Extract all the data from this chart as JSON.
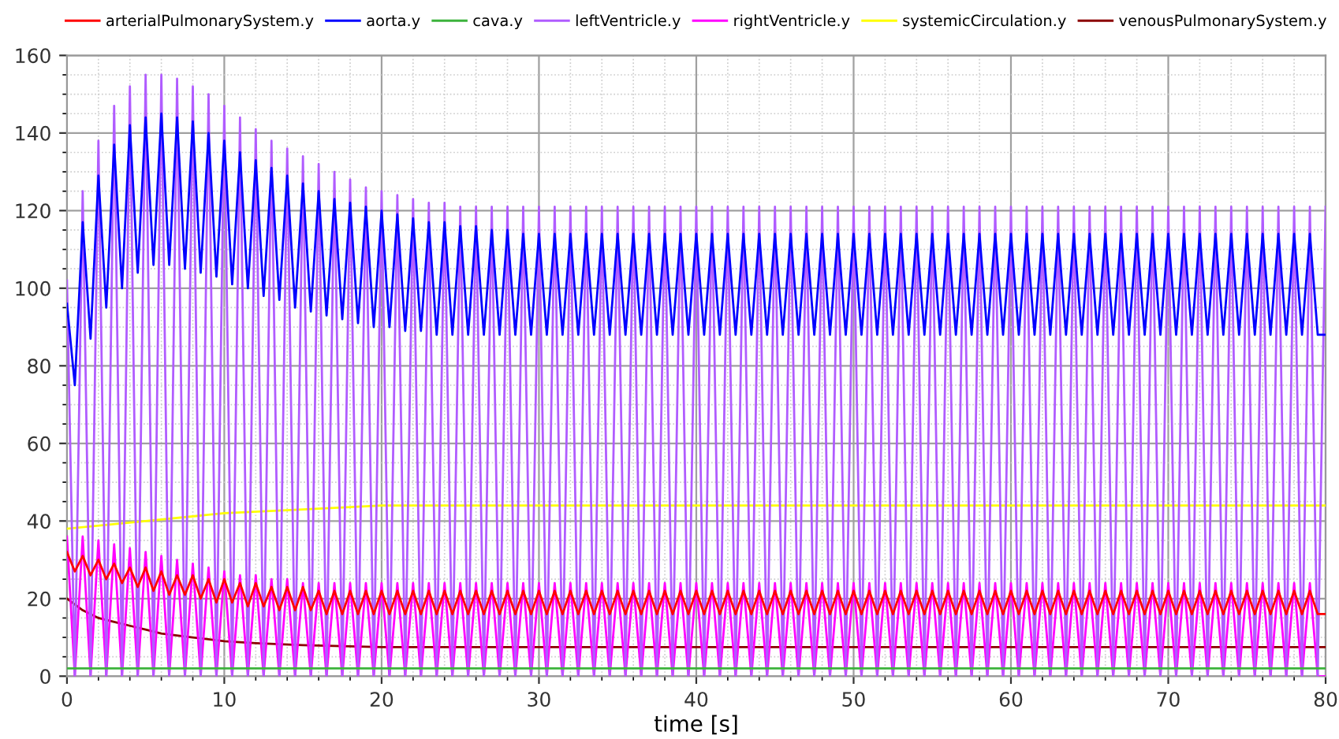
{
  "chart_data": {
    "type": "line",
    "xlabel": "time [s]",
    "x": [
      0,
      0.5,
      1,
      1.5,
      2,
      2.5,
      3,
      3.5,
      4,
      4.5,
      5,
      5.5,
      6,
      6.5,
      7,
      7.5,
      8,
      8.5,
      9,
      9.5,
      10,
      10.5,
      11,
      11.5,
      12,
      12.5,
      13,
      13.5,
      14,
      14.5,
      15,
      15.5,
      16,
      16.5,
      17,
      17.5,
      18,
      18.5,
      19,
      19.5,
      20,
      20.5,
      21,
      21.5,
      22,
      22.5,
      23,
      23.5,
      24,
      24.5,
      25,
      25.5,
      26,
      26.5,
      27,
      27.5,
      28,
      28.5,
      29,
      29.5,
      30,
      30.5,
      31,
      31.5,
      32,
      32.5,
      33,
      33.5,
      34,
      34.5,
      35,
      35.5,
      36,
      36.5,
      37,
      37.5,
      38,
      38.5,
      39,
      39.5,
      40,
      40.5,
      41,
      41.5,
      42,
      42.5,
      43,
      43.5,
      44,
      44.5,
      45,
      45.5,
      46,
      46.5,
      47,
      47.5,
      48,
      48.5,
      49,
      49.5,
      50,
      50.5,
      51,
      51.5,
      52,
      52.5,
      53,
      53.5,
      54,
      54.5,
      55,
      55.5,
      56,
      56.5,
      57,
      57.5,
      58,
      58.5,
      59,
      59.5,
      60,
      60.5,
      61,
      61.5,
      62,
      62.5,
      63,
      63.5,
      64,
      64.5,
      65,
      65.5,
      66,
      66.5,
      67,
      67.5,
      68,
      68.5,
      69,
      69.5,
      70,
      70.5,
      71,
      71.5,
      72,
      72.5,
      73,
      73.5,
      74,
      74.5,
      75,
      75.5,
      76,
      76.5,
      77,
      77.5,
      78,
      78.5,
      79,
      79.5,
      80
    ],
    "series": [
      {
        "name": "arterialPulmonarySystem.y",
        "color": "#ff0000",
        "values": [
          32,
          27,
          31,
          26,
          30,
          25,
          29,
          24,
          28,
          23,
          28,
          22,
          27,
          21,
          26,
          21,
          26,
          20,
          25,
          19,
          25,
          19,
          24,
          18,
          24,
          18,
          23,
          17,
          23,
          17,
          23,
          17,
          22,
          16,
          22,
          16,
          22,
          16,
          22,
          16,
          22,
          16,
          22,
          16,
          22,
          16,
          22,
          16,
          22,
          16,
          22,
          16,
          22,
          16,
          22,
          16,
          22,
          16,
          22,
          16,
          22,
          16,
          22,
          16,
          22,
          16,
          22,
          16,
          22,
          16,
          22,
          16,
          22,
          16,
          22,
          16,
          22,
          16,
          22,
          16,
          22,
          16,
          22,
          16,
          22,
          16,
          22,
          16,
          22,
          16,
          22,
          16,
          22,
          16,
          22,
          16,
          22,
          16,
          22,
          16,
          22,
          16,
          22,
          16,
          22,
          16,
          22,
          16,
          22,
          16,
          22,
          16,
          22,
          16,
          22,
          16,
          22,
          16,
          22,
          16,
          22,
          16,
          22,
          16,
          22,
          16,
          22,
          16,
          22,
          16,
          22,
          16,
          22,
          16,
          22,
          16,
          22,
          16,
          22,
          16,
          22,
          16,
          22,
          16,
          22,
          16,
          22,
          16,
          22,
          16,
          22,
          16,
          22,
          16,
          22,
          16,
          22,
          16,
          22,
          16,
          16
        ]
      },
      {
        "name": "aorta.y",
        "color": "#0000ff",
        "values": [
          96,
          75,
          117,
          87,
          129,
          95,
          137,
          100,
          142,
          104,
          144,
          106,
          145,
          106,
          144,
          105,
          143,
          104,
          140,
          103,
          138,
          101,
          135,
          100,
          133,
          98,
          131,
          97,
          129,
          95,
          127,
          94,
          125,
          93,
          123,
          92,
          122,
          91,
          121,
          90,
          120,
          90,
          119,
          89,
          118,
          89,
          117,
          88,
          117,
          88,
          116,
          88,
          116,
          88,
          115,
          88,
          115,
          88,
          114,
          88,
          114,
          88,
          114,
          88,
          114,
          88,
          114,
          88,
          114,
          88,
          114,
          88,
          114,
          88,
          114,
          88,
          114,
          88,
          114,
          88,
          114,
          88,
          114,
          88,
          114,
          88,
          114,
          88,
          114,
          88,
          114,
          88,
          114,
          88,
          114,
          88,
          114,
          88,
          114,
          88,
          114,
          88,
          114,
          88,
          114,
          88,
          114,
          88,
          114,
          88,
          114,
          88,
          114,
          88,
          114,
          88,
          114,
          88,
          114,
          88,
          114,
          88,
          114,
          88,
          114,
          88,
          114,
          88,
          114,
          88,
          114,
          88,
          114,
          88,
          114,
          88,
          114,
          88,
          114,
          88,
          114,
          88,
          114,
          88,
          114,
          88,
          114,
          88,
          114,
          88,
          114,
          88,
          114,
          88,
          114,
          88,
          114,
          88,
          114,
          88,
          88
        ]
      },
      {
        "name": "cava.y",
        "color": "#3cb33c",
        "x": [
          0,
          80
        ],
        "values": [
          2,
          2
        ]
      },
      {
        "name": "leftVentricle.y",
        "color": "#b05cff",
        "values": [
          102,
          0,
          125,
          0,
          138,
          0,
          147,
          0,
          152,
          0,
          155,
          0,
          155,
          0,
          154,
          0,
          152,
          0,
          150,
          0,
          147,
          0,
          144,
          0,
          141,
          0,
          138,
          0,
          136,
          0,
          134,
          0,
          132,
          0,
          130,
          0,
          128,
          0,
          126,
          0,
          125,
          0,
          124,
          0,
          123,
          0,
          122,
          0,
          122,
          0,
          121,
          0,
          121,
          0,
          121,
          0,
          121,
          0,
          121,
          0,
          121,
          0,
          121,
          0,
          121,
          0,
          121,
          0,
          121,
          0,
          121,
          0,
          121,
          0,
          121,
          0,
          121,
          0,
          121,
          0,
          121,
          0,
          121,
          0,
          121,
          0,
          121,
          0,
          121,
          0,
          121,
          0,
          121,
          0,
          121,
          0,
          121,
          0,
          121,
          0,
          121,
          0,
          121,
          0,
          121,
          0,
          121,
          0,
          121,
          0,
          121,
          0,
          121,
          0,
          121,
          0,
          121,
          0,
          121,
          0,
          121,
          0,
          121,
          0,
          121,
          0,
          121,
          0,
          121,
          0,
          121,
          0,
          121,
          0,
          121,
          0,
          121,
          0,
          121,
          0,
          121,
          0,
          121,
          0,
          121,
          0,
          121,
          0,
          121,
          0,
          121,
          0,
          121,
          0,
          121,
          0,
          121,
          0,
          121,
          0,
          121
        ]
      },
      {
        "name": "rightVentricle.y",
        "color": "#ff00ff",
        "values": [
          36,
          0,
          36,
          0,
          35,
          0,
          34,
          0,
          33,
          0,
          32,
          0,
          31,
          0,
          30,
          0,
          29,
          0,
          28,
          0,
          27,
          0,
          26,
          0,
          26,
          0,
          25,
          0,
          25,
          0,
          24,
          0,
          24,
          0,
          24,
          0,
          24,
          0,
          24,
          0,
          24,
          0,
          24,
          0,
          24,
          0,
          24,
          0,
          24,
          0,
          24,
          0,
          24,
          0,
          24,
          0,
          24,
          0,
          24,
          0,
          24,
          0,
          24,
          0,
          24,
          0,
          24,
          0,
          24,
          0,
          24,
          0,
          24,
          0,
          24,
          0,
          24,
          0,
          24,
          0,
          24,
          0,
          24,
          0,
          24,
          0,
          24,
          0,
          24,
          0,
          24,
          0,
          24,
          0,
          24,
          0,
          24,
          0,
          24,
          0,
          24,
          0,
          24,
          0,
          24,
          0,
          24,
          0,
          24,
          0,
          24,
          0,
          24,
          0,
          24,
          0,
          24,
          0,
          24,
          0,
          24,
          0,
          24,
          0,
          24,
          0,
          24,
          0,
          24,
          0,
          24,
          0,
          24,
          0,
          24,
          0,
          24,
          0,
          24,
          0,
          24,
          0,
          24,
          0,
          24,
          0,
          24,
          0,
          24,
          0,
          24,
          0,
          24,
          0,
          24,
          0,
          24,
          0,
          24,
          0,
          0
        ]
      },
      {
        "name": "systemicCirculation.y",
        "color": "#ffff00",
        "x": [
          0,
          5,
          10,
          15,
          20,
          30,
          40,
          50,
          60,
          70,
          80
        ],
        "values": [
          38,
          40,
          42,
          43,
          44,
          44,
          44,
          44,
          44,
          44,
          44
        ]
      },
      {
        "name": "venousPulmonarySystem.y",
        "color": "#8b0000",
        "x": [
          0,
          1,
          2,
          3,
          4,
          5,
          6,
          8,
          10,
          12,
          15,
          20,
          30,
          40,
          50,
          60,
          70,
          80
        ],
        "values": [
          20,
          17,
          15,
          14,
          13,
          12,
          11,
          10,
          9,
          8.5,
          8,
          7.5,
          7.5,
          7.5,
          7.5,
          7.5,
          7.5,
          7.5
        ]
      }
    ],
    "xlim": [
      0,
      80
    ],
    "xticks": [
      0,
      10,
      20,
      30,
      40,
      50,
      60,
      70,
      80
    ],
    "ylim": [
      0,
      160
    ],
    "yticks": [
      0,
      20,
      40,
      60,
      80,
      100,
      120,
      140,
      160
    ],
    "grid": true,
    "legend": "top",
    "marker": "none",
    "line_style": "solid"
  }
}
